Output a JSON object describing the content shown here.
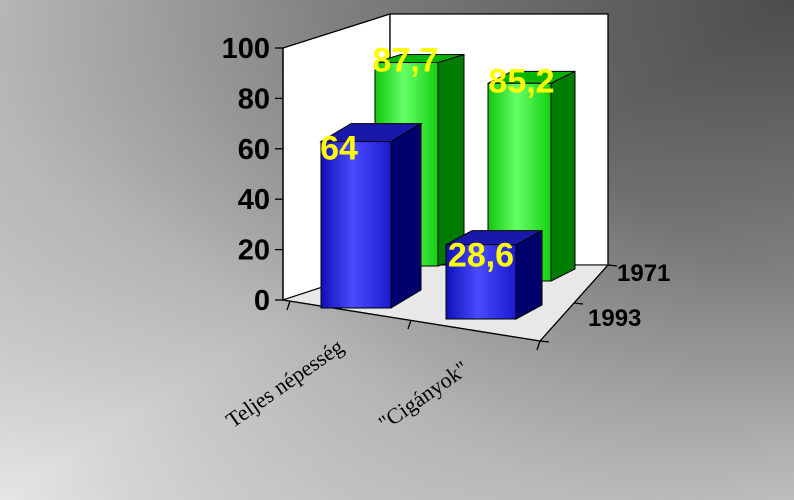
{
  "chart_data": {
    "type": "bar",
    "categories": [
      "Teljes népesség",
      "\"Cigányok\""
    ],
    "series": [
      {
        "name": "1971",
        "values": [
          87.7,
          85.2
        ],
        "labels": [
          "87,7",
          "85,2"
        ],
        "color": "#00dd00"
      },
      {
        "name": "1993",
        "values": [
          64,
          28.6
        ],
        "labels": [
          "64",
          "28,6"
        ],
        "color": "#0000cc"
      }
    ],
    "yticks": [
      "0",
      "20",
      "40",
      "60",
      "80",
      "100"
    ],
    "ylim": [
      0,
      100
    ],
    "title": "",
    "xlabel": "",
    "ylabel": "",
    "colors": {
      "background_light": "#d6d6d6",
      "background_dark": "#5a5a5a",
      "label_color": "#ffff00"
    }
  }
}
